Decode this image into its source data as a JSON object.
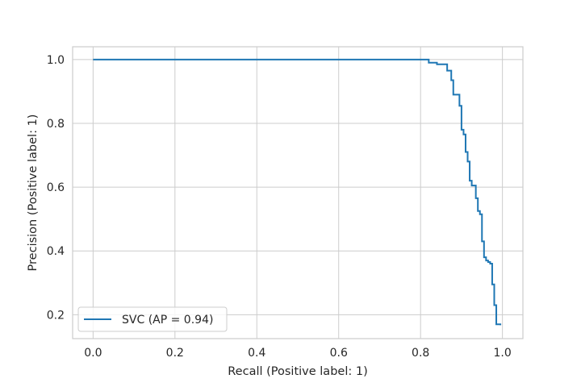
{
  "chart_data": {
    "type": "line",
    "title": "",
    "xlabel": "Recall (Positive label: 1)",
    "ylabel": "Precision (Positive label: 1)",
    "xlim": [
      -0.05,
      1.05
    ],
    "ylim": [
      0.125,
      1.04
    ],
    "xticks": [
      0.0,
      0.2,
      0.4,
      0.6,
      0.8,
      1.0
    ],
    "xtick_labels": [
      "0.0",
      "0.2",
      "0.4",
      "0.6",
      "0.8",
      "1.0"
    ],
    "yticks": [
      0.2,
      0.4,
      0.6,
      0.8,
      1.0
    ],
    "ytick_labels": [
      "0.2",
      "0.4",
      "0.6",
      "0.8",
      "1.0"
    ],
    "grid": true,
    "legend": {
      "position": "lower-left"
    },
    "series": [
      {
        "name": "SVC (AP = 0.94)",
        "color": "#1f77b4",
        "drawstyle": "steps-post",
        "points": [
          [
            0.0,
            1.0
          ],
          [
            0.82,
            1.0
          ],
          [
            0.82,
            0.99
          ],
          [
            0.84,
            0.99
          ],
          [
            0.84,
            0.985
          ],
          [
            0.865,
            0.985
          ],
          [
            0.865,
            0.965
          ],
          [
            0.875,
            0.965
          ],
          [
            0.875,
            0.935
          ],
          [
            0.88,
            0.935
          ],
          [
            0.88,
            0.89
          ],
          [
            0.895,
            0.89
          ],
          [
            0.895,
            0.855
          ],
          [
            0.9,
            0.855
          ],
          [
            0.9,
            0.78
          ],
          [
            0.905,
            0.78
          ],
          [
            0.905,
            0.765
          ],
          [
            0.91,
            0.765
          ],
          [
            0.91,
            0.71
          ],
          [
            0.915,
            0.71
          ],
          [
            0.915,
            0.68
          ],
          [
            0.92,
            0.68
          ],
          [
            0.92,
            0.62
          ],
          [
            0.925,
            0.62
          ],
          [
            0.925,
            0.605
          ],
          [
            0.935,
            0.605
          ],
          [
            0.935,
            0.565
          ],
          [
            0.94,
            0.565
          ],
          [
            0.94,
            0.525
          ],
          [
            0.945,
            0.525
          ],
          [
            0.945,
            0.515
          ],
          [
            0.95,
            0.515
          ],
          [
            0.95,
            0.43
          ],
          [
            0.955,
            0.43
          ],
          [
            0.955,
            0.38
          ],
          [
            0.96,
            0.38
          ],
          [
            0.96,
            0.37
          ],
          [
            0.965,
            0.37
          ],
          [
            0.965,
            0.365
          ],
          [
            0.97,
            0.365
          ],
          [
            0.97,
            0.36
          ],
          [
            0.975,
            0.36
          ],
          [
            0.975,
            0.295
          ],
          [
            0.98,
            0.295
          ],
          [
            0.98,
            0.23
          ],
          [
            0.985,
            0.23
          ],
          [
            0.985,
            0.17
          ],
          [
            0.995,
            0.17
          ],
          [
            0.995,
            0.167
          ]
        ]
      }
    ]
  }
}
